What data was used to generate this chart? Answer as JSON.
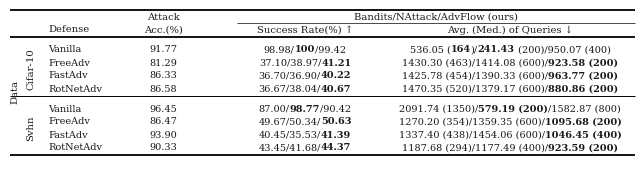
{
  "background": "#ffffff",
  "text_color": "#1a1a1a",
  "fontsize": 7.0,
  "header_fontsize": 7.2,
  "rows": [
    {
      "group": "CIFAR-10",
      "defense": "Vanilla",
      "acc": "91.77",
      "success_parts": [
        "98.98/",
        "100",
        "/99.42"
      ],
      "success_bold": [
        false,
        true,
        false
      ],
      "queries_parts": [
        "536.05 (",
        "164",
        ")/",
        "241.43",
        " (200)/950.07 (400)"
      ],
      "queries_bold": [
        false,
        true,
        false,
        true,
        false
      ]
    },
    {
      "group": "CIFAR-10",
      "defense": "FreeAdv",
      "acc": "81.29",
      "success_parts": [
        "37.10/38.97/",
        "41.21"
      ],
      "success_bold": [
        false,
        true
      ],
      "queries_parts": [
        "1430.30 (463)/1414.08 (600)/",
        "923.58 (200)"
      ],
      "queries_bold": [
        false,
        true
      ]
    },
    {
      "group": "CIFAR-10",
      "defense": "FastAdv",
      "acc": "86.33",
      "success_parts": [
        "36.70/36.90/",
        "40.22"
      ],
      "success_bold": [
        false,
        true
      ],
      "queries_parts": [
        "1425.78 (454)/1390.33 (600)/",
        "963.77 (200)"
      ],
      "queries_bold": [
        false,
        true
      ]
    },
    {
      "group": "CIFAR-10",
      "defense": "RotNetAdv",
      "acc": "86.58",
      "success_parts": [
        "36.67/38.04/",
        "40.67"
      ],
      "success_bold": [
        false,
        true
      ],
      "queries_parts": [
        "1470.35 (520)/1379.17 (600)/",
        "880.86 (200)"
      ],
      "queries_bold": [
        false,
        true
      ]
    },
    {
      "group": "SVHN",
      "defense": "Vanilla",
      "acc": "96.45",
      "success_parts": [
        "87.00/",
        "98.77",
        "/90.42"
      ],
      "success_bold": [
        false,
        true,
        false
      ],
      "queries_parts": [
        "2091.74 (1350)/",
        "579.19 (200)",
        "/1582.87 (800)"
      ],
      "queries_bold": [
        false,
        true,
        false
      ]
    },
    {
      "group": "SVHN",
      "defense": "FreeAdv",
      "acc": "86.47",
      "success_parts": [
        "49.67/50.34/",
        "50.63"
      ],
      "success_bold": [
        false,
        true
      ],
      "queries_parts": [
        "1270.20 (354)/1359.35 (600)/",
        "1095.68 (200)"
      ],
      "queries_bold": [
        false,
        true
      ]
    },
    {
      "group": "SVHN",
      "defense": "FastAdv",
      "acc": "93.90",
      "success_parts": [
        "40.45/35.53/",
        "41.39"
      ],
      "success_bold": [
        false,
        true
      ],
      "queries_parts": [
        "1337.40 (438)/1454.06 (600)/",
        "1046.45 (400)"
      ],
      "queries_bold": [
        false,
        true
      ]
    },
    {
      "group": "SVHN",
      "defense": "RotNetAdv",
      "acc": "90.33",
      "success_parts": [
        "43.45/41.68/",
        "44.37"
      ],
      "success_bold": [
        false,
        true
      ],
      "queries_parts": [
        "1187.68 (294)/1177.49 (400)/",
        "923.59 (200)"
      ],
      "queries_bold": [
        false,
        true
      ]
    }
  ]
}
